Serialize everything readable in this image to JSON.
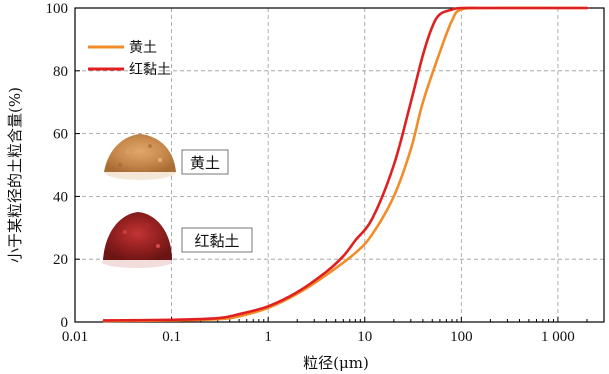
{
  "chart_data": {
    "type": "line",
    "xlabel": "粒径(μm)",
    "ylabel": "小于某粒径的土粒含量(%)",
    "xscale": "log",
    "xlim": [
      0.01,
      3000
    ],
    "ylim": [
      0,
      100
    ],
    "grid": true,
    "legend_position": "top-left",
    "xticks": [
      "0.01",
      "0.1",
      "1",
      "10",
      "100",
      "1 000"
    ],
    "yticks": [
      "0",
      "20",
      "40",
      "60",
      "80",
      "100"
    ],
    "series": [
      {
        "name": "黄土",
        "color": "#f28c28",
        "x": [
          0.02,
          0.1,
          0.3,
          0.5,
          1,
          2,
          4,
          8,
          12,
          20,
          30,
          40,
          60,
          80,
          100,
          200,
          2000
        ],
        "y": [
          0.3,
          0.5,
          0.9,
          1.8,
          4.5,
          9,
          15,
          22,
          28,
          40,
          55,
          70,
          86,
          96,
          99.5,
          100,
          100
        ]
      },
      {
        "name": "红黏土",
        "color": "#e02020",
        "x": [
          0.02,
          0.1,
          0.3,
          0.5,
          1,
          2,
          4,
          6,
          8,
          12,
          20,
          30,
          40,
          50,
          60,
          80,
          100,
          200,
          2000
        ],
        "y": [
          0.5,
          0.7,
          1.2,
          2.5,
          5,
          9.5,
          16,
          21,
          26,
          33,
          50,
          70,
          85,
          94,
          98,
          99.5,
          100,
          100,
          100
        ]
      }
    ],
    "annotations": [
      {
        "text": "黄土",
        "color_hint": "#c98a4a"
      },
      {
        "text": "红黏土",
        "color_hint": "#9e2626"
      }
    ]
  }
}
